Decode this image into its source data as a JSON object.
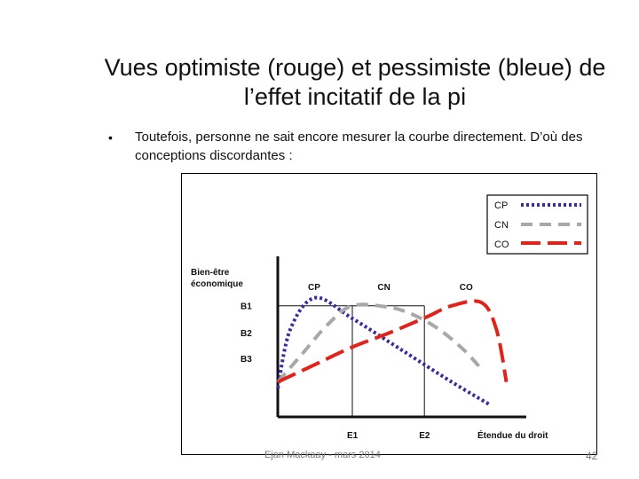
{
  "title": "Vues optimiste (rouge) et pessimiste (bleue) de l’effet incitatif de la pi",
  "bullet": {
    "marker": "•",
    "text": "Toutefois, personne ne sait encore mesurer la courbe directement. D’où des conceptions discordantes :"
  },
  "footer": "Ejan Mackaay - mars 2014",
  "page_number": "42",
  "colors": {
    "cp": "#3a2aa0",
    "cn": "#a8a8a8",
    "co": "#e0241c",
    "axis": "#111111"
  },
  "chart_data": {
    "type": "line",
    "ylabel": "Bien-être économique",
    "xlabel": "Étendue du droit",
    "x_ticks": [
      "E1",
      "E2"
    ],
    "y_ticks": [
      "B1",
      "B2",
      "B3"
    ],
    "curve_labels": [
      "CP",
      "CN",
      "CO"
    ],
    "legend": {
      "position": "top-right",
      "entries": [
        {
          "name": "CP",
          "style": "dotted",
          "color": "#3a2aa0"
        },
        {
          "name": "CN",
          "style": "dashed",
          "color": "#a8a8a8"
        },
        {
          "name": "CO",
          "style": "long-dashed",
          "color": "#e0241c"
        }
      ]
    },
    "series": [
      {
        "name": "CP",
        "x": [
          0.0,
          0.05,
          0.15,
          0.3,
          0.5,
          0.7,
          0.85
        ],
        "y": [
          0.18,
          0.55,
          0.75,
          0.62,
          0.42,
          0.22,
          0.08
        ]
      },
      {
        "name": "CN",
        "x": [
          0.0,
          0.1,
          0.2,
          0.3,
          0.45,
          0.55,
          0.65,
          0.75,
          0.82
        ],
        "y": [
          0.22,
          0.4,
          0.58,
          0.7,
          0.69,
          0.64,
          0.55,
          0.42,
          0.3
        ]
      },
      {
        "name": "CO",
        "x": [
          0.0,
          0.15,
          0.3,
          0.45,
          0.6,
          0.7,
          0.82,
          0.88,
          0.92
        ],
        "y": [
          0.22,
          0.33,
          0.44,
          0.53,
          0.63,
          0.7,
          0.72,
          0.55,
          0.22
        ]
      }
    ],
    "guides": {
      "E1": 0.3,
      "E2": 0.59,
      "B1": 0.7,
      "B2": 0.53,
      "B3": 0.37
    },
    "xlim": [
      0,
      1
    ],
    "ylim": [
      0,
      1
    ],
    "grid": false
  }
}
